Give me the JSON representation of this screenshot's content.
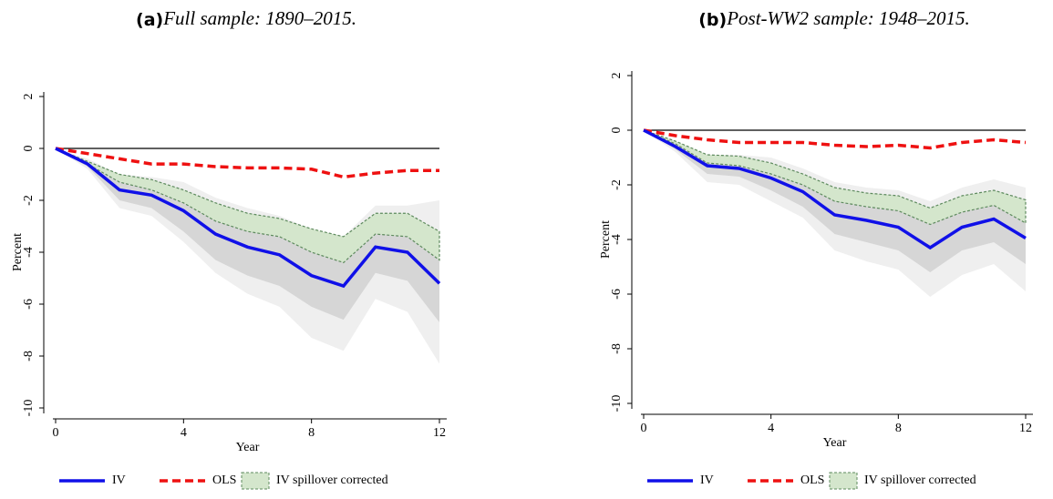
{
  "chart_data": [
    {
      "type": "line",
      "label": "(a)",
      "title": "Full sample: 1890–2015.",
      "x_label": "Year",
      "y_label": "Percent",
      "x": [
        0,
        1,
        2,
        3,
        4,
        5,
        6,
        7,
        8,
        9,
        10,
        11,
        12
      ],
      "xlim": [
        0,
        12
      ],
      "xticks": [
        0,
        4,
        8,
        12
      ],
      "ylim": [
        -10,
        2
      ],
      "yticks": [
        -10,
        -8,
        -6,
        -4,
        -2,
        0,
        2
      ],
      "hline": 0,
      "series": [
        {
          "name": "IV",
          "color": "#1010e8",
          "dash": false,
          "values": [
            0,
            -0.6,
            -1.6,
            -1.8,
            -2.4,
            -3.3,
            -3.8,
            -4.1,
            -4.9,
            -5.3,
            -3.8,
            -4.0,
            -5.2
          ]
        },
        {
          "name": "OLS",
          "color": "#ee1111",
          "dash": true,
          "values": [
            0,
            -0.2,
            -0.4,
            -0.6,
            -0.6,
            -0.7,
            -0.75,
            -0.75,
            -0.8,
            -1.1,
            -0.95,
            -0.85,
            -0.85
          ]
        }
      ],
      "bands": [
        {
          "color": "#efefef",
          "upper": [
            0,
            -0.4,
            -1.0,
            -1.1,
            -1.3,
            -1.9,
            -2.3,
            -2.6,
            -3.1,
            -3.4,
            -2.2,
            -2.2,
            -2.0
          ],
          "lower": [
            0,
            -0.8,
            -2.3,
            -2.6,
            -3.6,
            -4.8,
            -5.6,
            -6.1,
            -7.3,
            -7.8,
            -5.8,
            -6.3,
            -8.3
          ]
        },
        {
          "color": "#d6d6d6",
          "upper": [
            0,
            -0.5,
            -1.2,
            -1.3,
            -1.6,
            -2.3,
            -2.8,
            -3.1,
            -3.7,
            -4.0,
            -2.9,
            -3.0,
            -4.0
          ],
          "lower": [
            0,
            -0.7,
            -2.0,
            -2.3,
            -3.2,
            -4.3,
            -4.9,
            -5.3,
            -6.1,
            -6.6,
            -4.8,
            -5.1,
            -6.7
          ]
        },
        {
          "name": "IV spillover corrected",
          "color": "#d4e6cc",
          "border": "#5e8a5e",
          "upper": [
            0,
            -0.5,
            -1.0,
            -1.2,
            -1.6,
            -2.1,
            -2.5,
            -2.7,
            -3.1,
            -3.4,
            -2.5,
            -2.5,
            -3.2
          ],
          "lower": [
            0,
            -0.6,
            -1.3,
            -1.6,
            -2.1,
            -2.8,
            -3.2,
            -3.4,
            -4.0,
            -4.4,
            -3.3,
            -3.4,
            -4.3
          ]
        }
      ]
    },
    {
      "type": "line",
      "label": "(b)",
      "title": "Post-WW2 sample: 1948–2015.",
      "x_label": "Year",
      "y_label": "Percent",
      "x": [
        0,
        1,
        2,
        3,
        4,
        5,
        6,
        7,
        8,
        9,
        10,
        11,
        12
      ],
      "xlim": [
        0,
        12
      ],
      "xticks": [
        0,
        4,
        8,
        12
      ],
      "ylim": [
        -10,
        2
      ],
      "yticks": [
        -10,
        -8,
        -6,
        -4,
        -2,
        0,
        2
      ],
      "hline": 0,
      "series": [
        {
          "name": "IV",
          "color": "#1010e8",
          "dash": false,
          "values": [
            0,
            -0.6,
            -1.3,
            -1.4,
            -1.75,
            -2.25,
            -3.1,
            -3.3,
            -3.55,
            -4.3,
            -3.55,
            -3.25,
            -3.95
          ]
        },
        {
          "name": "OLS",
          "color": "#ee1111",
          "dash": true,
          "values": [
            0,
            -0.2,
            -0.35,
            -0.45,
            -0.45,
            -0.45,
            -0.55,
            -0.6,
            -0.55,
            -0.65,
            -0.45,
            -0.35,
            -0.45
          ]
        }
      ],
      "bands": [
        {
          "color": "#efefef",
          "upper": [
            0,
            -0.4,
            -0.9,
            -0.9,
            -1.0,
            -1.4,
            -1.9,
            -2.1,
            -2.2,
            -2.6,
            -2.1,
            -1.8,
            -2.1
          ],
          "lower": [
            0,
            -0.8,
            -1.9,
            -2.0,
            -2.6,
            -3.2,
            -4.4,
            -4.8,
            -5.1,
            -6.1,
            -5.3,
            -4.9,
            -5.9
          ]
        },
        {
          "color": "#d6d6d6",
          "upper": [
            0,
            -0.5,
            -1.1,
            -1.1,
            -1.3,
            -1.8,
            -2.4,
            -2.6,
            -2.7,
            -3.3,
            -2.7,
            -2.4,
            -2.9
          ],
          "lower": [
            0,
            -0.7,
            -1.6,
            -1.7,
            -2.2,
            -2.8,
            -3.8,
            -4.1,
            -4.4,
            -5.2,
            -4.4,
            -4.1,
            -4.9
          ]
        },
        {
          "name": "IV spillover corrected",
          "color": "#d4e6cc",
          "border": "#5e8a5e",
          "upper": [
            0,
            -0.4,
            -0.9,
            -0.95,
            -1.2,
            -1.6,
            -2.1,
            -2.3,
            -2.4,
            -2.85,
            -2.4,
            -2.2,
            -2.55
          ],
          "lower": [
            0,
            -0.5,
            -1.2,
            -1.3,
            -1.6,
            -2.0,
            -2.6,
            -2.8,
            -2.95,
            -3.45,
            -3.0,
            -2.75,
            -3.4
          ]
        }
      ]
    }
  ]
}
